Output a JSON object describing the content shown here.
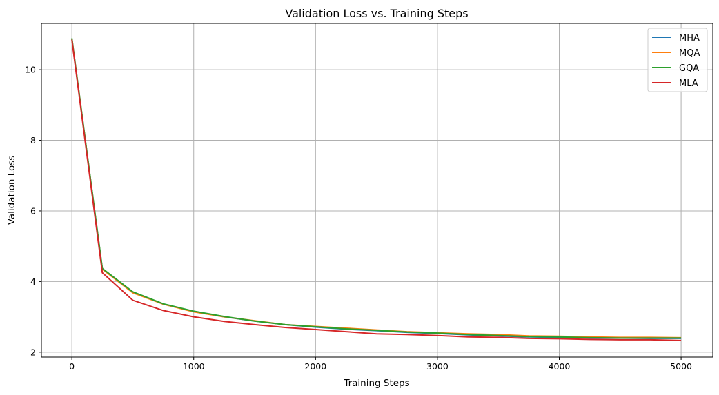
{
  "chart_data": {
    "type": "line",
    "title": "Validation Loss vs. Training Steps",
    "xlabel": "Training Steps",
    "ylabel": "Validation Loss",
    "xlim": [
      -250,
      5260
    ],
    "ylim": [
      1.86,
      11.31
    ],
    "xticks": [
      0,
      1000,
      2000,
      3000,
      4000,
      5000
    ],
    "yticks": [
      2,
      4,
      6,
      8,
      10
    ],
    "grid": true,
    "legend_position": "top-right",
    "x": [
      0,
      250,
      500,
      750,
      1000,
      1250,
      1500,
      1750,
      2000,
      2250,
      2500,
      2750,
      3000,
      3250,
      3500,
      3750,
      4000,
      4250,
      4500,
      4750,
      5000
    ],
    "series": [
      {
        "name": "MHA",
        "color": "#1f77b4",
        "values": [
          10.88,
          4.36,
          3.7,
          3.36,
          3.15,
          3.0,
          2.88,
          2.78,
          2.71,
          2.65,
          2.61,
          2.56,
          2.53,
          2.49,
          2.46,
          2.43,
          2.42,
          2.4,
          2.4,
          2.39,
          2.39
        ]
      },
      {
        "name": "MQA",
        "color": "#ff7f0e",
        "values": [
          10.88,
          4.35,
          3.68,
          3.36,
          3.14,
          3.0,
          2.89,
          2.78,
          2.73,
          2.68,
          2.63,
          2.58,
          2.55,
          2.52,
          2.5,
          2.46,
          2.45,
          2.43,
          2.42,
          2.42,
          2.41
        ]
      },
      {
        "name": "GQA",
        "color": "#2ca02c",
        "values": [
          10.89,
          4.37,
          3.71,
          3.37,
          3.16,
          3.01,
          2.88,
          2.78,
          2.72,
          2.66,
          2.62,
          2.57,
          2.54,
          2.5,
          2.47,
          2.44,
          2.43,
          2.41,
          2.4,
          2.4,
          2.4
        ]
      },
      {
        "name": "MLA",
        "color": "#d62728",
        "values": [
          10.85,
          4.25,
          3.47,
          3.18,
          3.0,
          2.87,
          2.78,
          2.7,
          2.64,
          2.58,
          2.52,
          2.5,
          2.47,
          2.43,
          2.42,
          2.39,
          2.38,
          2.36,
          2.35,
          2.35,
          2.33
        ]
      }
    ]
  }
}
